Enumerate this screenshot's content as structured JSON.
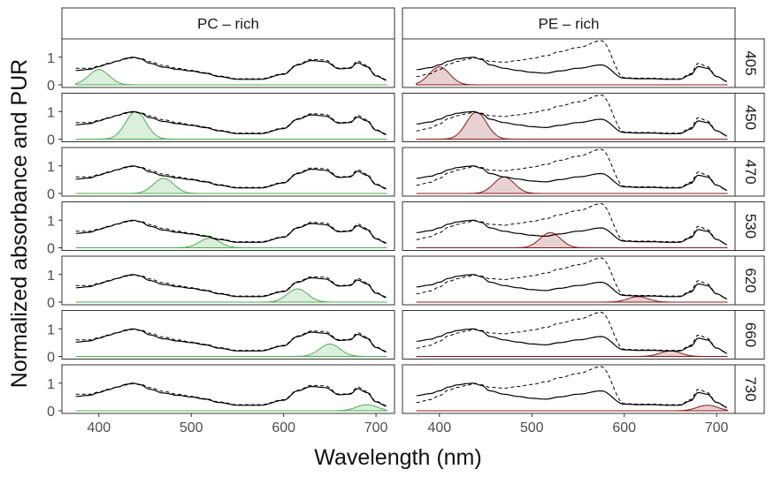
{
  "chart_data": {
    "type": "line",
    "xlabel": "Wavelength (nm)",
    "ylabel": "Normalized absorbance and PUR",
    "xlim": [
      360,
      720
    ],
    "ylim": [
      0,
      1.6
    ],
    "x_ticks": [
      400,
      500,
      600,
      700
    ],
    "y_ticks": [
      0,
      1
    ],
    "grid": false,
    "legend": "none",
    "facet_columns": [
      "PC – rich",
      "PE – rich"
    ],
    "facet_rows": [
      "405",
      "450",
      "470",
      "530",
      "620",
      "660",
      "730"
    ],
    "colors": {
      "PC – rich": "#4caf50",
      "PE – rich": "#8b1a1a",
      "absorbance": "#000000",
      "strip_fill": "#ffffff"
    },
    "absorbance_nodes_nm": [
      375,
      390,
      400,
      410,
      420,
      430,
      437,
      445,
      455,
      470,
      485,
      500,
      515,
      530,
      550,
      575,
      600,
      615,
      630,
      645,
      660,
      672,
      680,
      690,
      700,
      712
    ],
    "absorbance_solid": {
      "PC – rich": [
        0.52,
        0.56,
        0.66,
        0.76,
        0.86,
        0.96,
        1.0,
        0.94,
        0.78,
        0.64,
        0.56,
        0.5,
        0.42,
        0.3,
        0.2,
        0.2,
        0.38,
        0.72,
        0.88,
        0.84,
        0.58,
        0.6,
        0.8,
        0.66,
        0.32,
        0.16
      ],
      "PE – rich": [
        0.55,
        0.62,
        0.72,
        0.86,
        0.94,
        0.98,
        1.0,
        0.92,
        0.72,
        0.6,
        0.52,
        0.45,
        0.42,
        0.5,
        0.6,
        0.72,
        0.24,
        0.22,
        0.22,
        0.2,
        0.2,
        0.36,
        0.66,
        0.6,
        0.3,
        0.12
      ]
    },
    "absorbance_dashed": {
      "PC – rich": [
        0.6,
        0.6,
        0.68,
        0.78,
        0.86,
        0.94,
        0.98,
        0.96,
        0.84,
        0.7,
        0.6,
        0.52,
        0.44,
        0.32,
        0.22,
        0.22,
        0.4,
        0.74,
        0.92,
        0.9,
        0.6,
        0.62,
        0.86,
        0.7,
        0.34,
        0.18
      ],
      "PE – rich": [
        0.3,
        0.4,
        0.55,
        0.75,
        0.85,
        0.92,
        0.98,
        0.94,
        0.85,
        0.82,
        0.88,
        0.95,
        1.05,
        1.2,
        1.35,
        1.6,
        0.26,
        0.24,
        0.24,
        0.22,
        0.22,
        0.4,
        0.78,
        0.66,
        0.3,
        0.1
      ]
    },
    "series": [
      {
        "facet_column": "PC – rich",
        "facet_row": "405",
        "peak_nm": 400,
        "peak_value": 0.55
      },
      {
        "facet_column": "PC – rich",
        "facet_row": "450",
        "peak_nm": 440,
        "peak_value": 1.0
      },
      {
        "facet_column": "PC – rich",
        "facet_row": "470",
        "peak_nm": 470,
        "peak_value": 0.55
      },
      {
        "facet_column": "PC – rich",
        "facet_row": "530",
        "peak_nm": 520,
        "peak_value": 0.35
      },
      {
        "facet_column": "PC – rich",
        "facet_row": "620",
        "peak_nm": 615,
        "peak_value": 0.48
      },
      {
        "facet_column": "PC – rich",
        "facet_row": "660",
        "peak_nm": 650,
        "peak_value": 0.45
      },
      {
        "facet_column": "PC – rich",
        "facet_row": "730",
        "peak_nm": 690,
        "peak_value": 0.22
      },
      {
        "facet_column": "PE – rich",
        "facet_row": "405",
        "peak_nm": 400,
        "peak_value": 0.65
      },
      {
        "facet_column": "PE – rich",
        "facet_row": "450",
        "peak_nm": 440,
        "peak_value": 0.98
      },
      {
        "facet_column": "PE – rich",
        "facet_row": "470",
        "peak_nm": 470,
        "peak_value": 0.6
      },
      {
        "facet_column": "PE – rich",
        "facet_row": "530",
        "peak_nm": 520,
        "peak_value": 0.55
      },
      {
        "facet_column": "PE – rich",
        "facet_row": "620",
        "peak_nm": 615,
        "peak_value": 0.2
      },
      {
        "facet_column": "PE – rich",
        "facet_row": "660",
        "peak_nm": 650,
        "peak_value": 0.2
      },
      {
        "facet_column": "PE – rich",
        "facet_row": "730",
        "peak_nm": 690,
        "peak_value": 0.2
      }
    ]
  }
}
